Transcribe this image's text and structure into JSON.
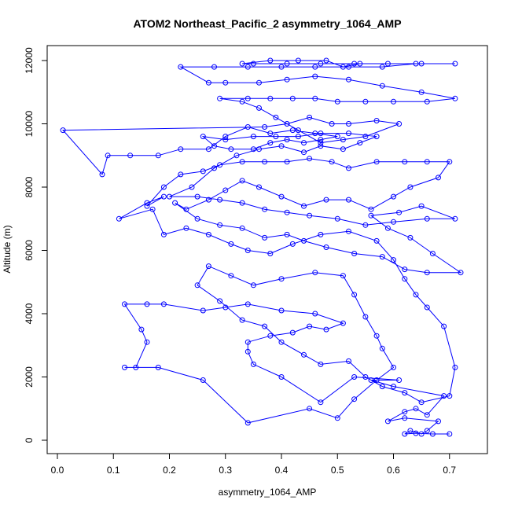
{
  "chart_data": {
    "type": "line",
    "title": "ATOM2 Northeast_Pacific_2 asymmetry_1064_AMP",
    "xlabel": "asymmetry_1064_AMP",
    "ylabel": "Altitude (m)",
    "xlim": [
      0.0,
      0.72
    ],
    "ylim": [
      0,
      12000
    ],
    "x_ticks": [
      "0.0",
      "0.1",
      "0.2",
      "0.3",
      "0.4",
      "0.5",
      "0.6",
      "0.7"
    ],
    "y_ticks": [
      "0",
      "2000",
      "4000",
      "6000",
      "8000",
      "10000",
      "12000"
    ],
    "grid": false,
    "legend": false,
    "color": "#0000ff",
    "series": [
      {
        "name": "",
        "points": [
          [
            0.7,
            200
          ],
          [
            0.67,
            200
          ],
          [
            0.64,
            220
          ],
          [
            0.62,
            200
          ],
          [
            0.63,
            300
          ],
          [
            0.65,
            200
          ],
          [
            0.66,
            300
          ],
          [
            0.68,
            600
          ],
          [
            0.62,
            700
          ],
          [
            0.59,
            600
          ],
          [
            0.62,
            900
          ],
          [
            0.64,
            1000
          ],
          [
            0.66,
            800
          ],
          [
            0.69,
            1400
          ],
          [
            0.6,
            1700
          ],
          [
            0.56,
            1900
          ],
          [
            0.61,
            1900
          ],
          [
            0.53,
            2000
          ],
          [
            0.47,
            1200
          ],
          [
            0.4,
            2000
          ],
          [
            0.35,
            2400
          ],
          [
            0.34,
            2800
          ],
          [
            0.34,
            3100
          ],
          [
            0.38,
            3300
          ],
          [
            0.42,
            3400
          ],
          [
            0.45,
            3600
          ],
          [
            0.48,
            3500
          ],
          [
            0.51,
            3700
          ],
          [
            0.46,
            4000
          ],
          [
            0.4,
            4100
          ],
          [
            0.34,
            4300
          ],
          [
            0.3,
            4200
          ],
          [
            0.26,
            4100
          ],
          [
            0.19,
            4300
          ],
          [
            0.16,
            4300
          ],
          [
            0.12,
            4300
          ],
          [
            0.15,
            3500
          ],
          [
            0.16,
            3100
          ],
          [
            0.14,
            2300
          ],
          [
            0.12,
            2300
          ],
          [
            0.18,
            2300
          ],
          [
            0.26,
            1900
          ],
          [
            0.34,
            550
          ],
          [
            0.45,
            1000
          ],
          [
            0.5,
            700
          ],
          [
            0.53,
            1300
          ],
          [
            0.57,
            1900
          ],
          [
            0.6,
            2300
          ],
          [
            0.58,
            2900
          ],
          [
            0.57,
            3300
          ],
          [
            0.55,
            3900
          ],
          [
            0.53,
            4600
          ],
          [
            0.51,
            5200
          ],
          [
            0.46,
            5300
          ],
          [
            0.4,
            5100
          ],
          [
            0.35,
            4900
          ],
          [
            0.31,
            5200
          ],
          [
            0.27,
            5500
          ],
          [
            0.25,
            4900
          ],
          [
            0.29,
            4400
          ],
          [
            0.33,
            3800
          ],
          [
            0.37,
            3600
          ],
          [
            0.4,
            3100
          ],
          [
            0.44,
            2700
          ],
          [
            0.47,
            2400
          ],
          [
            0.52,
            2500
          ],
          [
            0.55,
            2000
          ],
          [
            0.58,
            1700
          ],
          [
            0.62,
            1500
          ],
          [
            0.65,
            1200
          ],
          [
            0.7,
            1400
          ],
          [
            0.71,
            2300
          ],
          [
            0.69,
            3600
          ],
          [
            0.66,
            4200
          ],
          [
            0.64,
            4600
          ],
          [
            0.62,
            5100
          ],
          [
            0.6,
            5700
          ],
          [
            0.57,
            6300
          ],
          [
            0.52,
            6600
          ],
          [
            0.47,
            6500
          ],
          [
            0.42,
            6200
          ],
          [
            0.38,
            5900
          ],
          [
            0.34,
            6000
          ],
          [
            0.31,
            6200
          ],
          [
            0.27,
            6500
          ],
          [
            0.23,
            6700
          ],
          [
            0.19,
            6500
          ],
          [
            0.17,
            7300
          ],
          [
            0.11,
            7000
          ],
          [
            0.16,
            7500
          ],
          [
            0.19,
            7700
          ],
          [
            0.16,
            7400
          ],
          [
            0.19,
            8000
          ],
          [
            0.22,
            8400
          ],
          [
            0.26,
            8500
          ],
          [
            0.29,
            8700
          ],
          [
            0.33,
            8800
          ],
          [
            0.37,
            8800
          ],
          [
            0.41,
            8800
          ],
          [
            0.45,
            8900
          ],
          [
            0.49,
            8800
          ],
          [
            0.52,
            8600
          ],
          [
            0.57,
            8800
          ],
          [
            0.62,
            8800
          ],
          [
            0.66,
            8800
          ],
          [
            0.7,
            8800
          ],
          [
            0.68,
            8300
          ],
          [
            0.63,
            8000
          ],
          [
            0.6,
            7700
          ],
          [
            0.56,
            7300
          ],
          [
            0.52,
            7600
          ],
          [
            0.48,
            7600
          ],
          [
            0.44,
            7400
          ],
          [
            0.4,
            7700
          ],
          [
            0.36,
            8000
          ],
          [
            0.33,
            8200
          ],
          [
            0.3,
            7900
          ],
          [
            0.27,
            7600
          ],
          [
            0.23,
            7300
          ],
          [
            0.21,
            7500
          ],
          [
            0.25,
            7000
          ],
          [
            0.29,
            6800
          ],
          [
            0.33,
            6700
          ],
          [
            0.37,
            6400
          ],
          [
            0.41,
            6500
          ],
          [
            0.44,
            6300
          ],
          [
            0.48,
            6100
          ],
          [
            0.53,
            5900
          ],
          [
            0.58,
            5800
          ],
          [
            0.62,
            5400
          ],
          [
            0.66,
            5300
          ],
          [
            0.72,
            5300
          ],
          [
            0.67,
            5900
          ],
          [
            0.63,
            6400
          ],
          [
            0.59,
            6700
          ],
          [
            0.56,
            7100
          ],
          [
            0.61,
            7200
          ],
          [
            0.65,
            7400
          ],
          [
            0.71,
            7000
          ],
          [
            0.66,
            7000
          ],
          [
            0.6,
            6900
          ],
          [
            0.55,
            6800
          ],
          [
            0.5,
            7000
          ],
          [
            0.45,
            7100
          ],
          [
            0.41,
            7200
          ],
          [
            0.37,
            7300
          ],
          [
            0.33,
            7500
          ],
          [
            0.29,
            7600
          ],
          [
            0.25,
            7700
          ],
          [
            0.2,
            7700
          ],
          [
            0.24,
            8000
          ],
          [
            0.28,
            8600
          ],
          [
            0.32,
            9000
          ],
          [
            0.36,
            9200
          ],
          [
            0.4,
            9300
          ],
          [
            0.44,
            9100
          ],
          [
            0.47,
            9300
          ],
          [
            0.51,
            9200
          ],
          [
            0.54,
            9400
          ],
          [
            0.57,
            9600
          ],
          [
            0.52,
            9700
          ],
          [
            0.47,
            9700
          ],
          [
            0.43,
            9600
          ],
          [
            0.39,
            9600
          ],
          [
            0.35,
            9600
          ],
          [
            0.3,
            9500
          ],
          [
            0.26,
            9600
          ],
          [
            0.28,
            9300
          ],
          [
            0.31,
            9200
          ],
          [
            0.35,
            9200
          ],
          [
            0.38,
            9400
          ],
          [
            0.41,
            9500
          ],
          [
            0.44,
            9400
          ],
          [
            0.47,
            9500
          ],
          [
            0.5,
            9600
          ],
          [
            0.46,
            9700
          ],
          [
            0.42,
            9800
          ],
          [
            0.38,
            9700
          ],
          [
            0.34,
            9900
          ],
          [
            0.3,
            9600
          ],
          [
            0.27,
            9200
          ],
          [
            0.22,
            9200
          ],
          [
            0.18,
            9000
          ],
          [
            0.13,
            9000
          ],
          [
            0.09,
            9000
          ],
          [
            0.08,
            8400
          ],
          [
            0.01,
            9800
          ],
          [
            0.37,
            9900
          ],
          [
            0.41,
            10000
          ],
          [
            0.45,
            10200
          ],
          [
            0.49,
            10000
          ],
          [
            0.52,
            10000
          ],
          [
            0.57,
            10100
          ],
          [
            0.61,
            10000
          ],
          [
            0.55,
            9600
          ],
          [
            0.51,
            9500
          ],
          [
            0.47,
            9400
          ],
          [
            0.43,
            9800
          ],
          [
            0.39,
            10200
          ],
          [
            0.36,
            10500
          ],
          [
            0.33,
            10700
          ],
          [
            0.29,
            10800
          ],
          [
            0.34,
            10800
          ],
          [
            0.38,
            10800
          ],
          [
            0.42,
            10800
          ],
          [
            0.46,
            10800
          ],
          [
            0.5,
            10700
          ],
          [
            0.55,
            10700
          ],
          [
            0.6,
            10700
          ],
          [
            0.66,
            10700
          ],
          [
            0.71,
            10800
          ],
          [
            0.65,
            11000
          ],
          [
            0.58,
            11200
          ],
          [
            0.52,
            11400
          ],
          [
            0.46,
            11500
          ],
          [
            0.41,
            11400
          ],
          [
            0.36,
            11300
          ],
          [
            0.3,
            11300
          ],
          [
            0.27,
            11300
          ],
          [
            0.22,
            11800
          ],
          [
            0.28,
            11800
          ],
          [
            0.34,
            11800
          ],
          [
            0.4,
            11800
          ],
          [
            0.46,
            11800
          ],
          [
            0.52,
            11800
          ],
          [
            0.58,
            11800
          ],
          [
            0.64,
            11900
          ],
          [
            0.71,
            11900
          ],
          [
            0.65,
            11900
          ],
          [
            0.59,
            11900
          ],
          [
            0.53,
            11900
          ],
          [
            0.47,
            11900
          ],
          [
            0.41,
            11900
          ],
          [
            0.35,
            11900
          ],
          [
            0.33,
            11900
          ],
          [
            0.38,
            12000
          ],
          [
            0.43,
            12000
          ],
          [
            0.48,
            12000
          ],
          [
            0.51,
            11800
          ],
          [
            0.54,
            11900
          ]
        ]
      }
    ]
  }
}
